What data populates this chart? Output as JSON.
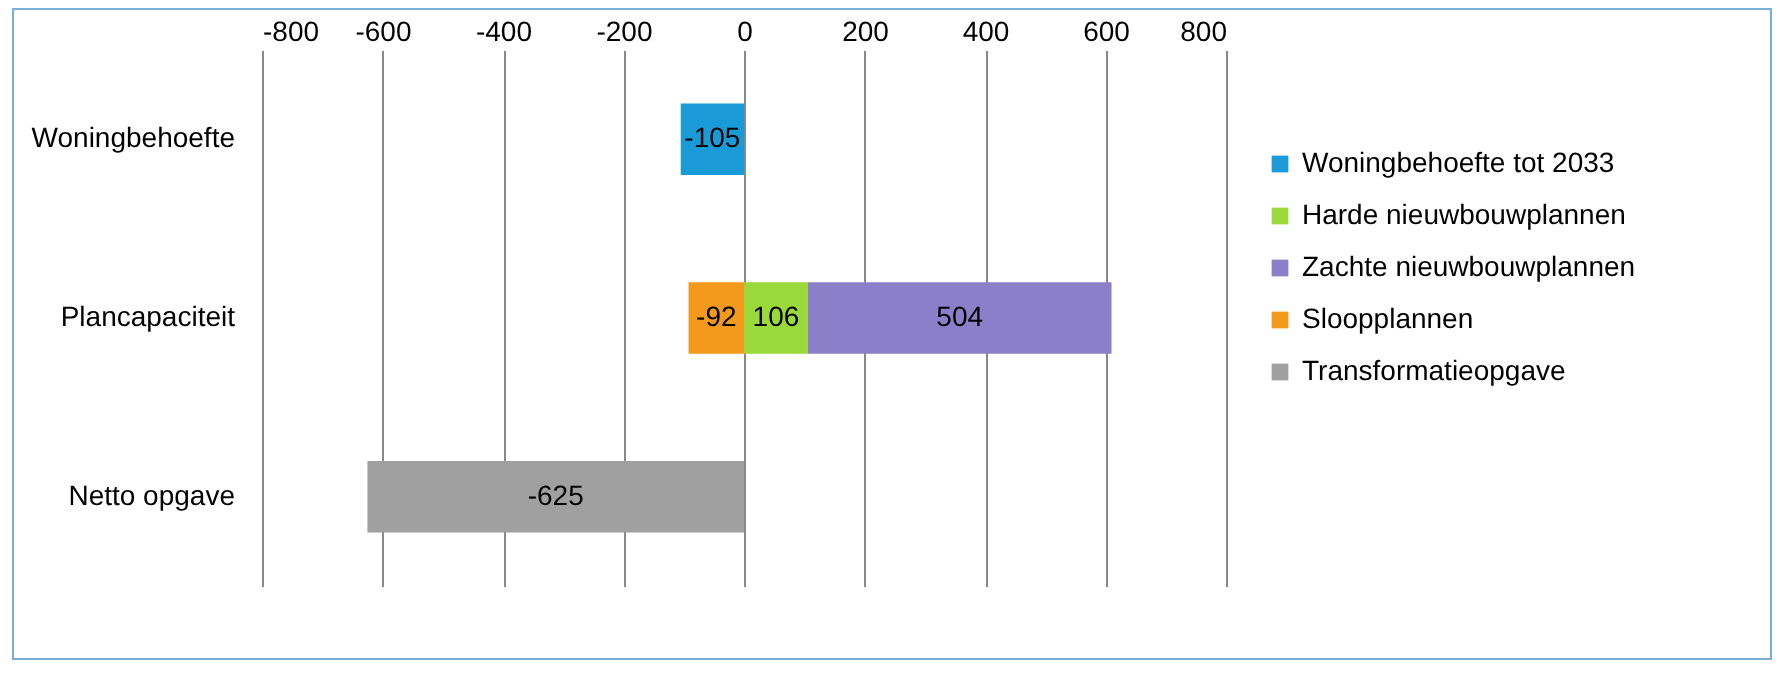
{
  "chart_data": {
    "type": "bar",
    "orientation": "horizontal",
    "stacked": true,
    "categories": [
      "Woningbehoefte",
      "Plancapaciteit",
      "Netto opgave"
    ],
    "series": [
      {
        "name": "Woningbehoefte tot 2033",
        "color": "#1a9bd7",
        "values": [
          -105,
          null,
          null
        ]
      },
      {
        "name": "Harde nieuwbouwplannen",
        "color": "#9ad93a",
        "values": [
          null,
          106,
          null
        ]
      },
      {
        "name": "Zachte nieuwbouwplannen",
        "color": "#8c7fca",
        "values": [
          null,
          504,
          null
        ]
      },
      {
        "name": "Sloopplannen",
        "color": "#f39a1c",
        "values": [
          null,
          -92,
          null
        ]
      },
      {
        "name": "Transformatieopgave",
        "color": "#a0a0a0",
        "values": [
          null,
          null,
          -625
        ]
      }
    ],
    "xlim": [
      -800,
      800
    ],
    "xticks": [
      -800,
      -600,
      -400,
      -200,
      0,
      200,
      400,
      600,
      800
    ],
    "grid": "x",
    "legend": "right",
    "data_labels": true
  }
}
